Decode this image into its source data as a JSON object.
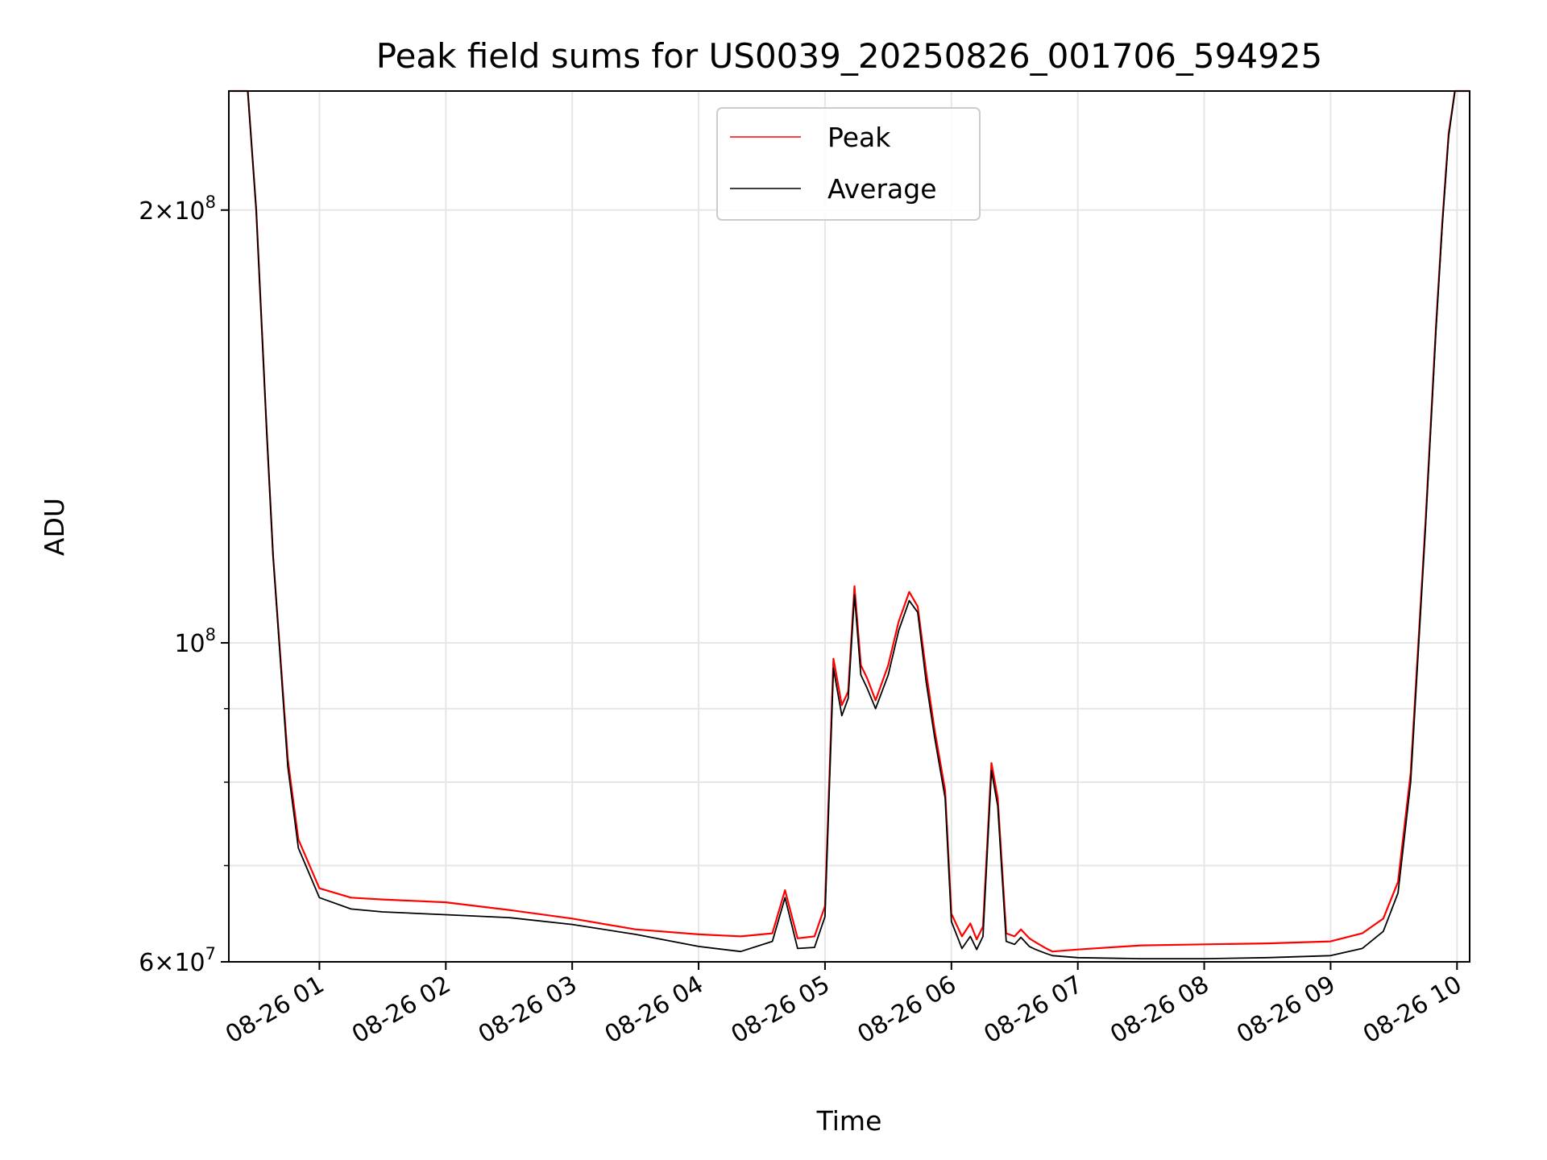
{
  "chart_data": {
    "type": "line",
    "title": "Peak field sums for US0039_20250826_001706_594925",
    "xlabel": "Time",
    "ylabel": "ADU",
    "yscale": "log",
    "ylim": [
      60000000,
      242000000
    ],
    "xlim": [
      "2025-08-26 00:17",
      "2025-08-26 10:06"
    ],
    "grid": true,
    "legend": {
      "placement": "upper center",
      "entries": [
        "Peak",
        "Average"
      ]
    },
    "colors": {
      "Peak": "#ff0000",
      "Average": "#000000",
      "grid": "#e6e6e6"
    },
    "x_tick_labels": [
      "08-26 01",
      "08-26 02",
      "08-26 03",
      "08-26 04",
      "08-26 05",
      "08-26 06",
      "08-26 07",
      "08-26 08",
      "08-26 09",
      "08-26 10"
    ],
    "y_tick_labels": [
      {
        "value": 60000000,
        "mant": "6",
        "exp": "7",
        "mult": true
      },
      {
        "value": 100000000,
        "mant": "10",
        "exp": "8",
        "mult": false
      },
      {
        "value": 200000000,
        "mant": "2",
        "exp": "8",
        "mult": true
      }
    ],
    "y_minor_ticks": [
      70000000,
      80000000,
      90000000
    ],
    "series": [
      {
        "name": "Average",
        "x": [
          "2025-08-26 00:17",
          "2025-08-26 00:26",
          "2025-08-26 00:30",
          "2025-08-26 00:35",
          "2025-08-26 00:38",
          "2025-08-26 00:45",
          "2025-08-26 00:50",
          "2025-08-26 01:00",
          "2025-08-26 01:15",
          "2025-08-26 01:30",
          "2025-08-26 02:00",
          "2025-08-26 02:30",
          "2025-08-26 03:00",
          "2025-08-26 03:30",
          "2025-08-26 04:00",
          "2025-08-26 04:20",
          "2025-08-26 04:35",
          "2025-08-26 04:41",
          "2025-08-26 04:47",
          "2025-08-26 04:55",
          "2025-08-26 05:00",
          "2025-08-26 05:04",
          "2025-08-26 05:08",
          "2025-08-26 05:11",
          "2025-08-26 05:14",
          "2025-08-26 05:17",
          "2025-08-26 05:20",
          "2025-08-26 05:24",
          "2025-08-26 05:30",
          "2025-08-26 05:35",
          "2025-08-26 05:40",
          "2025-08-26 05:44",
          "2025-08-26 05:48",
          "2025-08-26 05:52",
          "2025-08-26 05:57",
          "2025-08-26 06:00",
          "2025-08-26 06:05",
          "2025-08-26 06:09",
          "2025-08-26 06:12",
          "2025-08-26 06:15",
          "2025-08-26 06:19",
          "2025-08-26 06:22",
          "2025-08-26 06:26",
          "2025-08-26 06:30",
          "2025-08-26 06:33",
          "2025-08-26 06:37",
          "2025-08-26 06:40",
          "2025-08-26 06:45",
          "2025-08-26 06:48",
          "2025-08-26 07:00",
          "2025-08-26 07:30",
          "2025-08-26 08:00",
          "2025-08-26 08:30",
          "2025-08-26 09:00",
          "2025-08-26 09:15",
          "2025-08-26 09:25",
          "2025-08-26 09:32",
          "2025-08-26 09:38",
          "2025-08-26 09:45",
          "2025-08-26 09:50",
          "2025-08-26 09:53",
          "2025-08-26 09:56",
          "2025-08-26 09:59",
          "2025-08-26 10:02",
          "2025-08-26 10:06"
        ],
        "y": [
          242000000,
          242000000,
          200000000,
          140000000,
          115000000,
          82000000,
          72000000,
          66500000,
          65300000,
          65000000,
          64700000,
          64400000,
          63700000,
          62700000,
          61500000,
          61000000,
          62000000,
          66500000,
          61300000,
          61400000,
          64500000,
          96000000,
          89000000,
          91500000,
          108000000,
          95000000,
          93000000,
          90000000,
          95000000,
          102000000,
          107000000,
          105000000,
          94000000,
          86000000,
          78000000,
          64000000,
          61300000,
          62500000,
          61200000,
          62500000,
          81500000,
          77000000,
          62000000,
          61700000,
          62400000,
          61500000,
          61200000,
          60800000,
          60600000,
          60400000,
          60300000,
          60300000,
          60400000,
          60600000,
          61300000,
          63000000,
          67000000,
          80000000,
          120000000,
          165000000,
          195000000,
          225000000,
          242000000,
          242000000,
          242000000
        ]
      },
      {
        "name": "Peak",
        "x": [
          "2025-08-26 00:17",
          "2025-08-26 00:26",
          "2025-08-26 00:30",
          "2025-08-26 00:35",
          "2025-08-26 00:38",
          "2025-08-26 00:45",
          "2025-08-26 00:50",
          "2025-08-26 01:00",
          "2025-08-26 01:15",
          "2025-08-26 01:30",
          "2025-08-26 02:00",
          "2025-08-26 02:30",
          "2025-08-26 03:00",
          "2025-08-26 03:30",
          "2025-08-26 04:00",
          "2025-08-26 04:20",
          "2025-08-26 04:35",
          "2025-08-26 04:41",
          "2025-08-26 04:47",
          "2025-08-26 04:55",
          "2025-08-26 05:00",
          "2025-08-26 05:04",
          "2025-08-26 05:08",
          "2025-08-26 05:11",
          "2025-08-26 05:14",
          "2025-08-26 05:17",
          "2025-08-26 05:20",
          "2025-08-26 05:24",
          "2025-08-26 05:30",
          "2025-08-26 05:35",
          "2025-08-26 05:40",
          "2025-08-26 05:44",
          "2025-08-26 05:48",
          "2025-08-26 05:52",
          "2025-08-26 05:57",
          "2025-08-26 06:00",
          "2025-08-26 06:05",
          "2025-08-26 06:09",
          "2025-08-26 06:12",
          "2025-08-26 06:15",
          "2025-08-26 06:19",
          "2025-08-26 06:22",
          "2025-08-26 06:26",
          "2025-08-26 06:30",
          "2025-08-26 06:33",
          "2025-08-26 06:37",
          "2025-08-26 06:40",
          "2025-08-26 06:45",
          "2025-08-26 06:48",
          "2025-08-26 07:00",
          "2025-08-26 07:30",
          "2025-08-26 08:00",
          "2025-08-26 08:30",
          "2025-08-26 09:00",
          "2025-08-26 09:15",
          "2025-08-26 09:25",
          "2025-08-26 09:32",
          "2025-08-26 09:38",
          "2025-08-26 09:45",
          "2025-08-26 09:50",
          "2025-08-26 09:53",
          "2025-08-26 09:56",
          "2025-08-26 09:59",
          "2025-08-26 10:02",
          "2025-08-26 10:06"
        ],
        "y": [
          242000000,
          242000000,
          200000000,
          140000000,
          115000000,
          83000000,
          73000000,
          67500000,
          66500000,
          66300000,
          66000000,
          65200000,
          64300000,
          63200000,
          62700000,
          62500000,
          62800000,
          67300000,
          62300000,
          62500000,
          65600000,
          97500000,
          90500000,
          92500000,
          109500000,
          96500000,
          94500000,
          91200000,
          96500000,
          103500000,
          108500000,
          106000000,
          95500000,
          87000000,
          79000000,
          64800000,
          62500000,
          63800000,
          62200000,
          63500000,
          82500000,
          78000000,
          62800000,
          62500000,
          63200000,
          62300000,
          61900000,
          61300000,
          61000000,
          61200000,
          61600000,
          61700000,
          61800000,
          62000000,
          62800000,
          64300000,
          68200000,
          81200000,
          121000000,
          166000000,
          196000000,
          226000000,
          242000000,
          242000000,
          242000000
        ]
      }
    ]
  }
}
